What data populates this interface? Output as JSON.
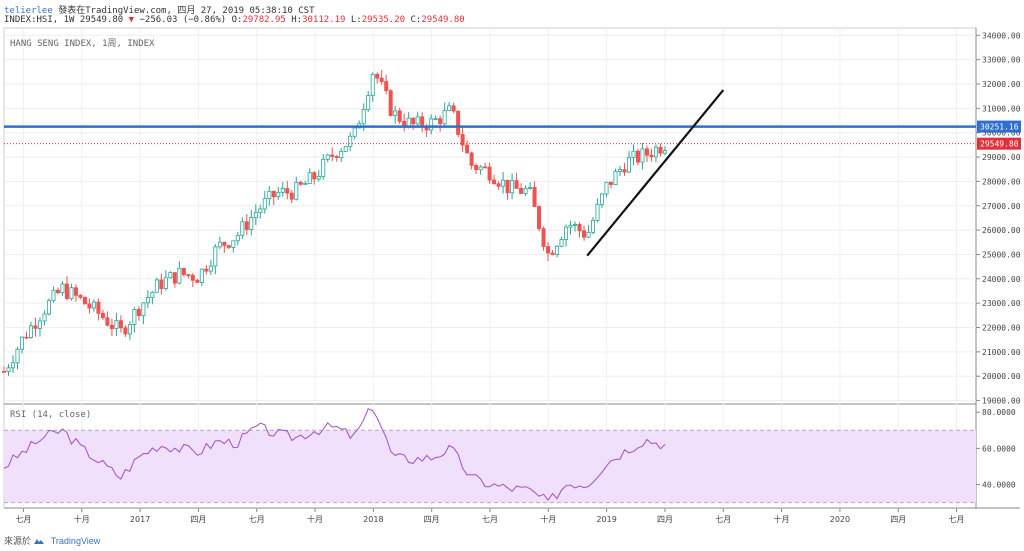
{
  "header": {
    "author": "telierlee",
    "published": "發表在TradingView.com, 四月 27, 2019 05:38:10 CST",
    "symbol": "INDEX:HSI, 1W",
    "last": "29549.80",
    "change": "−256.03 (−0.86%)",
    "open_label": "O:",
    "open": "29782.95",
    "high_label": "H:",
    "high": "30112.19",
    "low_label": "L:",
    "low": "29535.20",
    "close_label": "C:",
    "close": "29549.80"
  },
  "price_panel_label": "HANG SENG INDEX, 1周, INDEX",
  "rsi_panel_label": "RSI (14, close)",
  "footer": {
    "prefix": "來源於",
    "brand": "TradingView"
  },
  "colors": {
    "up": "#26a69a",
    "down": "#ef5350",
    "hline": "#2f6fd0",
    "rsi": "#a04fc4",
    "rsi_band": "#f0e0fb",
    "close_line": "#e0303a"
  },
  "chart_data": {
    "type": "candlestick",
    "price_axis": {
      "ticks": [
        19000,
        20000,
        21000,
        22000,
        23000,
        24000,
        25000,
        26000,
        27000,
        28000,
        29000,
        30000,
        31000,
        32000,
        33000,
        34000
      ],
      "tick_labels": [
        "19000.00",
        "20000.00",
        "21000.00",
        "22000.00",
        "23000.00",
        "24000.00",
        "25000.00",
        "26000.00",
        "27000.00",
        "28000.00",
        "29000.00",
        "30000.00",
        "31000.00",
        "32000.00",
        "33000.00",
        "34000.00"
      ],
      "range": [
        18900,
        34300
      ]
    },
    "time_axis": {
      "labels": [
        "七月",
        "十月",
        "2017",
        "四月",
        "七月",
        "十月",
        "2018",
        "四月",
        "七月",
        "十月",
        "2019",
        "四月",
        "七月",
        "十月",
        "2020",
        "四月",
        "七月"
      ],
      "start": "2016-06",
      "end": "2020-08"
    },
    "horizontal_line": {
      "value": 30251.16,
      "label": "30251.16"
    },
    "last_price": {
      "value": 29549.8,
      "label": "29549.80"
    },
    "trendline": {
      "from": [
        "2018-12",
        24950
      ],
      "to": [
        "2019-07",
        31750
      ]
    },
    "weekly_close_path": [
      [
        "2016-06",
        20200
      ],
      [
        "2016-07",
        21600
      ],
      [
        "2016-08",
        22700
      ],
      [
        "2016-09",
        23600
      ],
      [
        "2016-10",
        23100
      ],
      [
        "2016-11",
        22500
      ],
      [
        "2016-12",
        21800
      ],
      [
        "2017-01",
        22900
      ],
      [
        "2017-02",
        23800
      ],
      [
        "2017-03",
        24200
      ],
      [
        "2017-04",
        24100
      ],
      [
        "2017-05",
        25300
      ],
      [
        "2017-06",
        25800
      ],
      [
        "2017-07",
        26800
      ],
      [
        "2017-08",
        27500
      ],
      [
        "2017-09",
        27600
      ],
      [
        "2017-10",
        28200
      ],
      [
        "2017-11",
        29200
      ],
      [
        "2017-12",
        29800
      ],
      [
        "2018-01",
        32600
      ],
      [
        "2018-02",
        30800
      ],
      [
        "2018-03",
        30300
      ],
      [
        "2018-04",
        30400
      ],
      [
        "2018-05",
        30900
      ],
      [
        "2018-06",
        28700
      ],
      [
        "2018-07",
        28400
      ],
      [
        "2018-08",
        27700
      ],
      [
        "2018-09",
        27600
      ],
      [
        "2018-10",
        25000
      ],
      [
        "2018-11",
        26300
      ],
      [
        "2018-12",
        25800
      ],
      [
        "2019-01",
        27800
      ],
      [
        "2019-02",
        28800
      ],
      [
        "2019-03",
        29100
      ],
      [
        "2019-04",
        29550
      ]
    ],
    "rsi": {
      "levels": [
        30,
        70
      ],
      "ticks": [
        40,
        60,
        80
      ],
      "tick_labels": [
        "40.0000",
        "60.0000",
        "80.0000"
      ],
      "range": [
        27,
        84
      ],
      "values": [
        [
          "2016-06",
          50
        ],
        [
          "2016-07",
          58
        ],
        [
          "2016-08",
          66
        ],
        [
          "2016-09",
          70
        ],
        [
          "2016-10",
          60
        ],
        [
          "2016-11",
          52
        ],
        [
          "2016-12",
          44
        ],
        [
          "2017-01",
          56
        ],
        [
          "2017-02",
          62
        ],
        [
          "2017-03",
          60
        ],
        [
          "2017-04",
          58
        ],
        [
          "2017-05",
          64
        ],
        [
          "2017-06",
          63
        ],
        [
          "2017-07",
          72
        ],
        [
          "2017-08",
          68
        ],
        [
          "2017-09",
          66
        ],
        [
          "2017-10",
          70
        ],
        [
          "2017-11",
          72
        ],
        [
          "2017-12",
          66
        ],
        [
          "2018-01",
          84
        ],
        [
          "2018-02",
          55
        ],
        [
          "2018-03",
          54
        ],
        [
          "2018-04",
          55
        ],
        [
          "2018-05",
          60
        ],
        [
          "2018-06",
          44
        ],
        [
          "2018-07",
          40
        ],
        [
          "2018-08",
          38
        ],
        [
          "2018-09",
          37
        ],
        [
          "2018-10",
          30
        ],
        [
          "2018-11",
          41
        ],
        [
          "2018-12",
          40
        ],
        [
          "2019-01",
          52
        ],
        [
          "2019-02",
          59
        ],
        [
          "2019-03",
          65
        ],
        [
          "2019-04",
          62
        ]
      ]
    }
  }
}
